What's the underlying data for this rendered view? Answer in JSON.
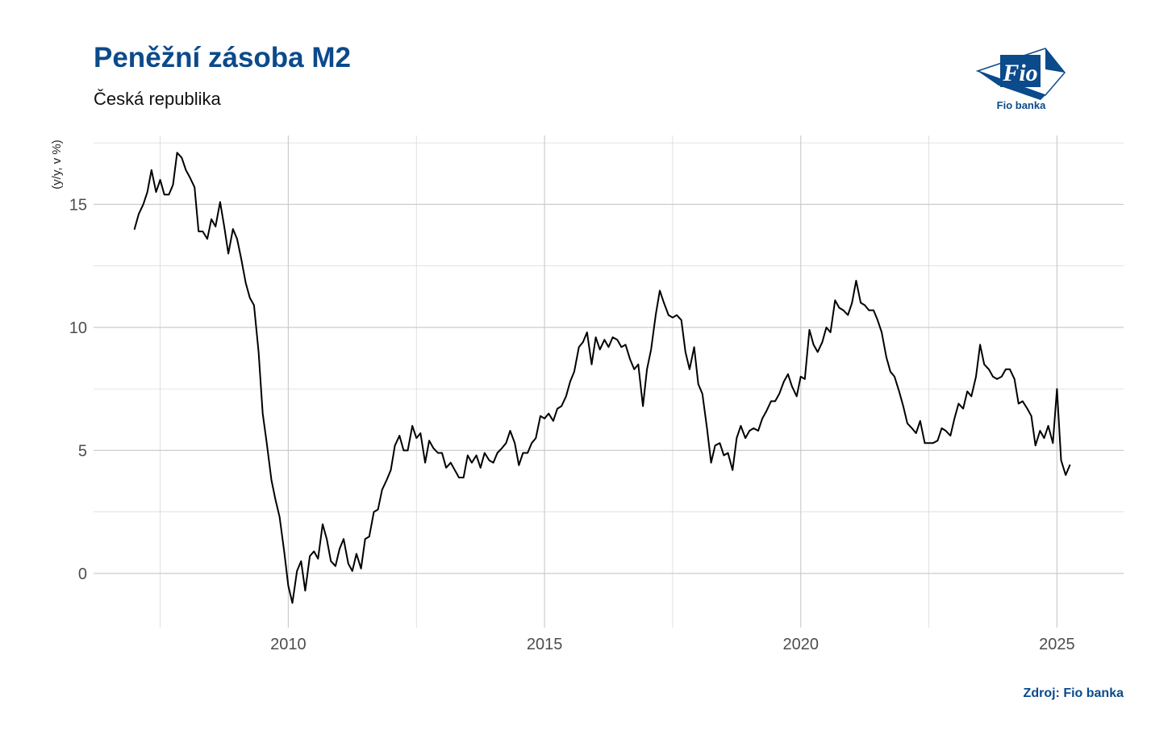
{
  "header": {
    "title": "Peněžní zásoba M2",
    "subtitle": "Česká republika"
  },
  "logo": {
    "mark_text": "Fio",
    "caption": "Fio banka",
    "color": "#0b4a8b"
  },
  "footer": {
    "source": "Zdroj: Fio banka"
  },
  "chart_data": {
    "type": "line",
    "title": "Peněžní zásoba M2",
    "subtitle": "Česká republika",
    "xlabel": "",
    "ylabel": "(y/y, v %)",
    "xlim": [
      2006.2,
      2026.3
    ],
    "ylim": [
      -2.2,
      17.8
    ],
    "x_ticks": [
      2010,
      2015,
      2020,
      2025
    ],
    "y_ticks": [
      0,
      5,
      10,
      15
    ],
    "grid": true,
    "legend": "none",
    "line_color": "#000000",
    "series": [
      {
        "x": [
          2007.0,
          2007.08,
          2007.17,
          2007.25,
          2007.33,
          2007.42,
          2007.5,
          2007.58,
          2007.67,
          2007.75,
          2007.83,
          2007.92,
          2008.0,
          2008.08,
          2008.17,
          2008.25,
          2008.33,
          2008.42,
          2008.5,
          2008.58,
          2008.67,
          2008.75,
          2008.83,
          2008.92,
          2009.0,
          2009.08,
          2009.17,
          2009.25,
          2009.33,
          2009.42,
          2009.5,
          2009.58,
          2009.67,
          2009.75,
          2009.83,
          2009.92,
          2010.0,
          2010.08,
          2010.17,
          2010.25,
          2010.33,
          2010.42,
          2010.5,
          2010.58,
          2010.67,
          2010.75,
          2010.83,
          2010.92,
          2011.0,
          2011.08,
          2011.17,
          2011.25,
          2011.33,
          2011.42,
          2011.5,
          2011.58,
          2011.67,
          2011.75,
          2011.83,
          2011.92,
          2012.0,
          2012.08,
          2012.17,
          2012.25,
          2012.33,
          2012.42,
          2012.5,
          2012.58,
          2012.67,
          2012.75,
          2012.83,
          2012.92,
          2013.0,
          2013.08,
          2013.17,
          2013.25,
          2013.33,
          2013.42,
          2013.5,
          2013.58,
          2013.67,
          2013.75,
          2013.83,
          2013.92,
          2014.0,
          2014.08,
          2014.17,
          2014.25,
          2014.33,
          2014.42,
          2014.5,
          2014.58,
          2014.67,
          2014.75,
          2014.83,
          2014.92,
          2015.0,
          2015.08,
          2015.17,
          2015.25,
          2015.33,
          2015.42,
          2015.5,
          2015.58,
          2015.67,
          2015.75,
          2015.83,
          2015.92,
          2016.0,
          2016.08,
          2016.17,
          2016.25,
          2016.33,
          2016.42,
          2016.5,
          2016.58,
          2016.67,
          2016.75,
          2016.83,
          2016.92,
          2017.0,
          2017.08,
          2017.17,
          2017.25,
          2017.33,
          2017.42,
          2017.5,
          2017.58,
          2017.67,
          2017.75,
          2017.83,
          2017.92,
          2018.0,
          2018.08,
          2018.17,
          2018.25,
          2018.33,
          2018.42,
          2018.5,
          2018.58,
          2018.67,
          2018.75,
          2018.83,
          2018.92,
          2019.0,
          2019.08,
          2019.17,
          2019.25,
          2019.33,
          2019.42,
          2019.5,
          2019.58,
          2019.67,
          2019.75,
          2019.83,
          2019.92,
          2020.0,
          2020.08,
          2020.17,
          2020.25,
          2020.33,
          2020.42,
          2020.5,
          2020.58,
          2020.67,
          2020.75,
          2020.83,
          2020.92,
          2021.0,
          2021.08,
          2021.17,
          2021.25,
          2021.33,
          2021.42,
          2021.5,
          2021.58,
          2021.67,
          2021.75,
          2021.83,
          2021.92,
          2022.0,
          2022.08,
          2022.17,
          2022.25,
          2022.33,
          2022.42,
          2022.5,
          2022.58,
          2022.67,
          2022.75,
          2022.83,
          2022.92,
          2023.0,
          2023.08,
          2023.17,
          2023.25,
          2023.33,
          2023.42,
          2023.5,
          2023.58,
          2023.67,
          2023.75,
          2023.83,
          2023.92,
          2024.0,
          2024.08,
          2024.17,
          2024.25,
          2024.33,
          2024.42,
          2024.5,
          2024.58,
          2024.67,
          2024.75,
          2024.83,
          2024.92,
          2025.0,
          2025.08,
          2025.17,
          2025.25
        ],
        "values": [
          14.0,
          14.6,
          15.0,
          15.5,
          16.4,
          15.5,
          16.0,
          15.4,
          15.4,
          15.8,
          17.1,
          16.9,
          16.4,
          16.1,
          15.7,
          13.9,
          13.9,
          13.6,
          14.4,
          14.1,
          15.1,
          14.1,
          13.0,
          14.0,
          13.6,
          12.8,
          11.8,
          11.2,
          10.9,
          9.0,
          6.5,
          5.3,
          3.8,
          3.0,
          2.3,
          0.9,
          -0.5,
          -1.2,
          0.1,
          0.5,
          -0.7,
          0.7,
          0.9,
          0.6,
          2.0,
          1.4,
          0.5,
          0.3,
          1.0,
          1.4,
          0.4,
          0.1,
          0.8,
          0.2,
          1.4,
          1.5,
          2.5,
          2.6,
          3.4,
          3.8,
          4.2,
          5.2,
          5.6,
          5.0,
          5.0,
          6.0,
          5.5,
          5.7,
          4.5,
          5.4,
          5.1,
          4.9,
          4.9,
          4.3,
          4.5,
          4.2,
          3.9,
          3.9,
          4.8,
          4.5,
          4.8,
          4.3,
          4.9,
          4.6,
          4.5,
          4.9,
          5.1,
          5.3,
          5.8,
          5.3,
          4.4,
          4.9,
          4.9,
          5.3,
          5.5,
          6.4,
          6.3,
          6.5,
          6.2,
          6.7,
          6.8,
          7.2,
          7.8,
          8.2,
          9.2,
          9.4,
          9.8,
          8.5,
          9.6,
          9.1,
          9.5,
          9.2,
          9.6,
          9.5,
          9.2,
          9.3,
          8.7,
          8.3,
          8.5,
          6.8,
          8.3,
          9.1,
          10.5,
          11.5,
          11.0,
          10.5,
          10.4,
          10.5,
          10.3,
          9.0,
          8.3,
          9.2,
          7.7,
          7.3,
          5.9,
          4.5,
          5.2,
          5.3,
          4.8,
          4.9,
          4.2,
          5.5,
          6.0,
          5.5,
          5.8,
          5.9,
          5.8,
          6.3,
          6.6,
          7.0,
          7.0,
          7.3,
          7.8,
          8.1,
          7.6,
          7.2,
          8.0,
          7.9,
          9.9,
          9.3,
          9.0,
          9.4,
          10.0,
          9.8,
          11.1,
          10.8,
          10.7,
          10.5,
          11.0,
          11.9,
          11.0,
          10.9,
          10.7,
          10.7,
          10.3,
          9.8,
          8.8,
          8.2,
          8.0,
          7.4,
          6.8,
          6.1,
          5.9,
          5.7,
          6.2,
          5.3,
          5.3,
          5.3,
          5.4,
          5.9,
          5.8,
          5.6,
          6.3,
          6.9,
          6.7,
          7.4,
          7.2,
          8.0,
          9.3,
          8.5,
          8.3,
          8.0,
          7.9,
          8.0,
          8.3,
          8.3,
          7.9,
          6.9,
          7.0,
          6.7,
          6.4,
          5.2,
          5.8,
          5.5,
          6.0,
          5.3,
          7.5,
          4.6,
          4.0,
          4.4
        ]
      }
    ]
  }
}
